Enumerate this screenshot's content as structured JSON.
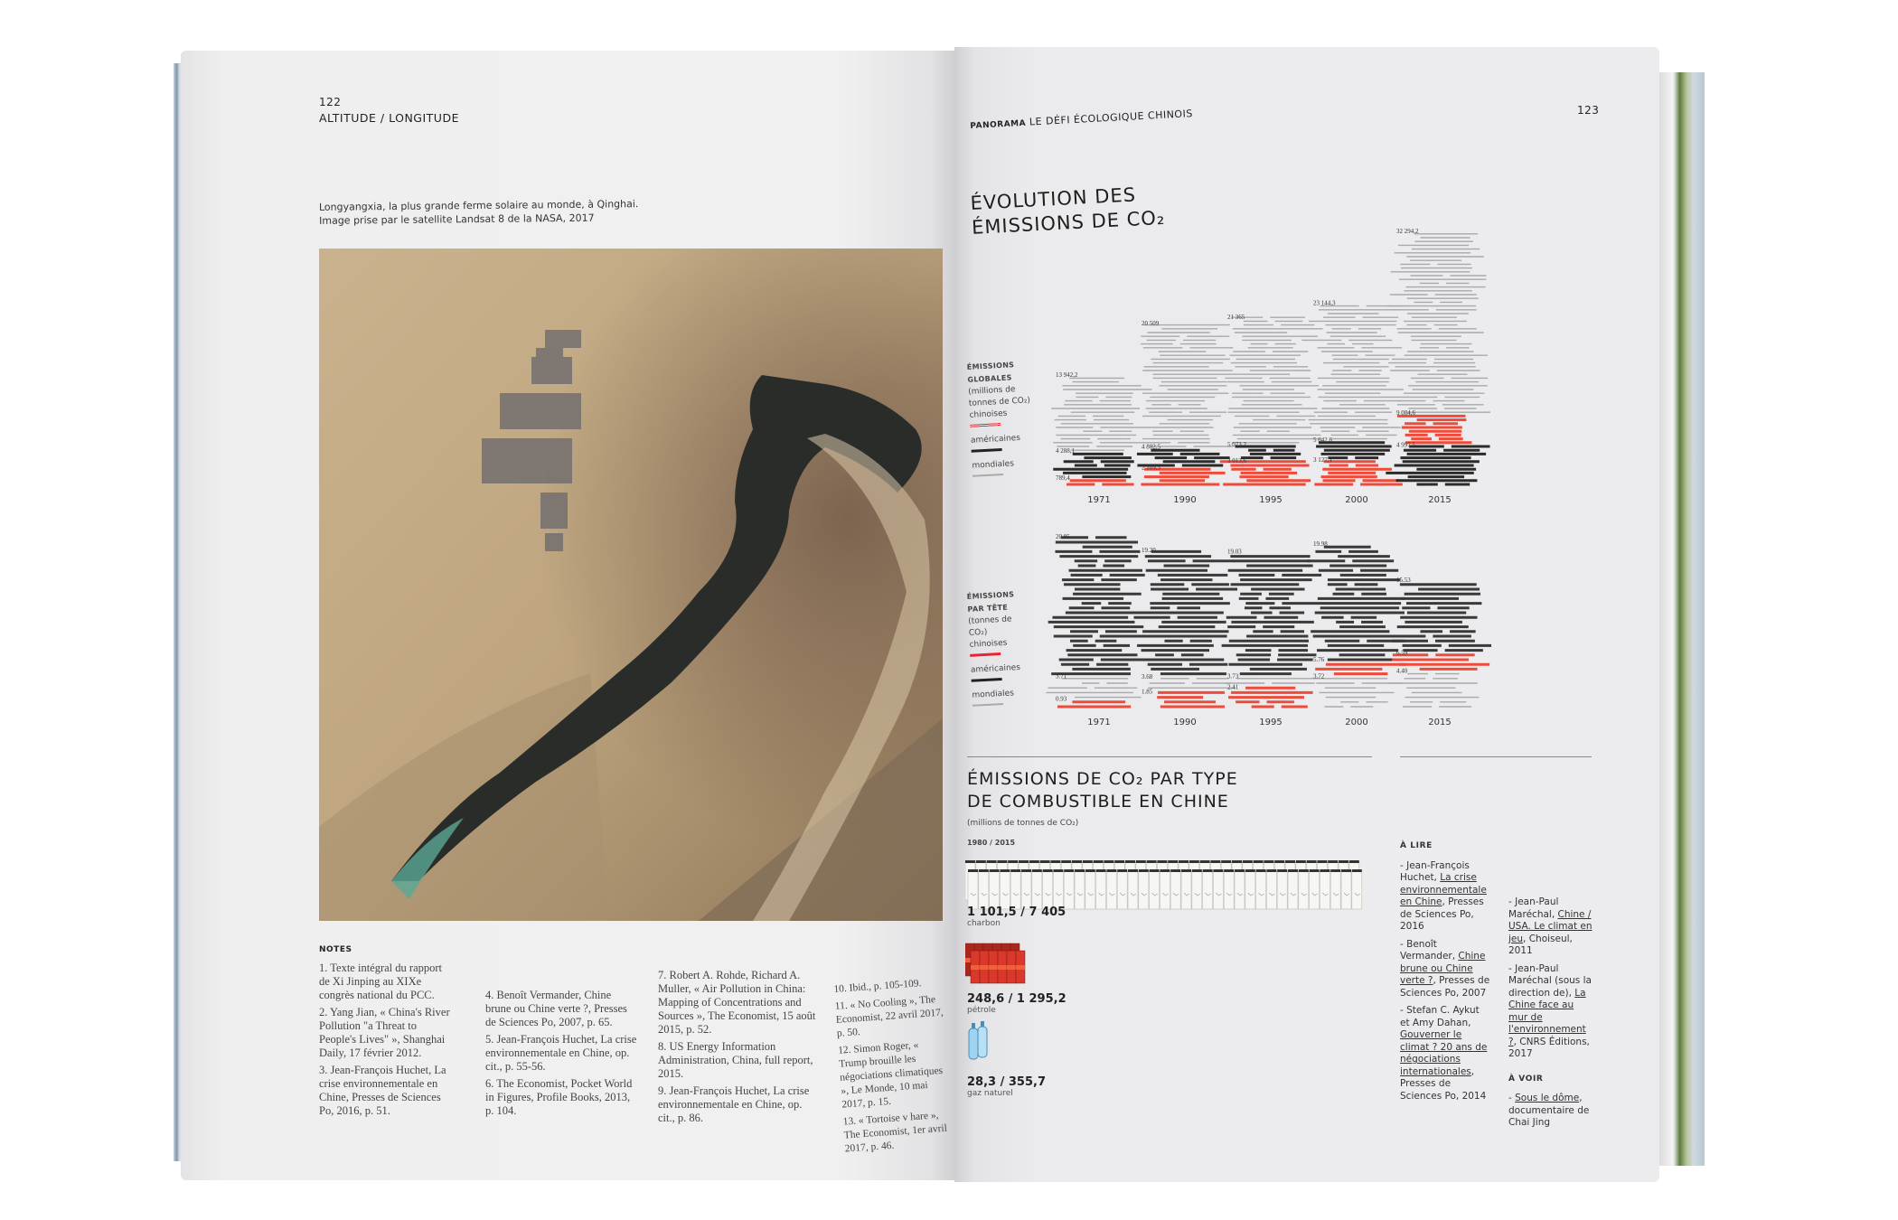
{
  "left_page": {
    "page_number": "122",
    "running_head": "ALTITUDE / LONGITUDE",
    "caption": [
      "Longyangxia, la plus grande ferme solaire au monde, à Qinghai.",
      "Image prise par le satellite Landsat 8 de la NASA, 2017"
    ],
    "notes_heading": "NOTES",
    "notes_columns": [
      [
        "1. Texte intégral du rapport de Xi Jinping au XIXe congrès national du PCC.",
        "2. Yang Jian, « China's River Pollution \"a Threat to People's Lives\" », Shanghai Daily, 17 février 2012.",
        "3. Jean-François Huchet, La crise environnementale en Chine, Presses de Sciences Po, 2016, p. 51."
      ],
      [
        "4. Benoît Vermander, Chine brune ou Chine verte ?, Presses de Sciences Po, 2007, p. 65.",
        "5. Jean-François Huchet, La crise environnementale en Chine, op. cit., p. 55-56.",
        "6. The Economist, Pocket World in Figures, Profile Books, 2013, p. 104."
      ],
      [
        "7. Robert A. Rohde, Richard A. Muller, « Air Pollution in China: Mapping of Concentrations and Sources », The Economist, 15 août 2015, p. 52.",
        "8. US Energy Information Administration, China, full report, 2015.",
        "9. Jean-François Huchet, La crise environnementale en Chine, op. cit., p. 86."
      ],
      [
        "10. Ibid., p. 105-109.",
        "11. « No Cooling », The Economist, 22 avril 2017, p. 50.",
        "12. Simon Roger, « Trump brouille les négociations climatiques », Le Monde, 10 mai 2017, p. 15.",
        "13. « Tortoise v hare », The Economist, 1er avril 2017, p. 46."
      ]
    ]
  },
  "right_page": {
    "running_head_bold": "PANORAMA",
    "running_head": "LE DÉFI ÉCOLOGIQUE CHINOIS",
    "page_number": "123",
    "title_line1": "ÉVOLUTION DES",
    "title_line2": "ÉMISSIONS DE CO₂",
    "legend_global": {
      "heading1": "ÉMISSIONS",
      "heading2": "GLOBALES",
      "unit": "(millions de tonnes de CO₂)",
      "china": "chinoises",
      "us": "américaines",
      "world": "mondiales"
    },
    "legend_per_capita": {
      "heading1": "ÉMISSIONS",
      "heading2": "PAR TÊTE",
      "unit": "(tonnes de CO₂)",
      "china": "chinoises",
      "us": "américaines",
      "world": "mondiales"
    },
    "fuel_title_line1": "ÉMISSIONS DE CO₂ PAR TYPE",
    "fuel_title_line2": "DE COMBUSTIBLE EN CHINE",
    "fuel_unit": "(millions de tonnes de CO₂)",
    "fuel_period": "1980 / 2015",
    "fuels": [
      {
        "value": "1 101,5 / 7 405",
        "name": "charbon",
        "icon": "coal-sack-icon"
      },
      {
        "value": "248,6 / 1 295,2",
        "name": "pétrole",
        "icon": "oil-barrel-icon"
      },
      {
        "value": "28,3 / 355,7",
        "name": "gaz naturel",
        "icon": "gas-bottle-icon"
      }
    ],
    "reading": {
      "heading": "À LIRE",
      "col1": [
        {
          "pre": "- Jean-François Huchet, ",
          "title": "La crise environnementale en Chine",
          "post": ", Presses de Sciences Po, 2016"
        },
        {
          "pre": "- Benoît Vermander, ",
          "title": "Chine brune ou Chine verte ?",
          "post": ", Presses de Sciences Po, 2007"
        },
        {
          "pre": "- Stefan C. Aykut et Amy Dahan, ",
          "title": "Gouverner le climat ? 20 ans de négociations internationales",
          "post": ", Presses de Sciences Po, 2014"
        }
      ],
      "col2": [
        {
          "pre": "- Jean-Paul Maréchal, ",
          "title": "Chine / USA. Le climat en jeu",
          "post": ", Choiseul, 2011"
        },
        {
          "pre": "- Jean-Paul Maréchal (sous la direction de), ",
          "title": "La Chine face au mur de l'environnement ?",
          "post": ", CNRS Éditions, 2017"
        }
      ],
      "watch_heading": "À VOIR",
      "watch": [
        {
          "pre": "- ",
          "title": "Sous le dôme",
          "post": ", documentaire de Chai Jing"
        }
      ]
    }
  },
  "chart_data": [
    {
      "type": "bar",
      "title": "ÉVOLUTION DES ÉMISSIONS DE CO₂",
      "ylabel": "ÉMISSIONS GLOBALES (millions de tonnes de CO₂)",
      "categories": [
        "1971",
        "1990",
        "1995",
        "2000",
        "2015"
      ],
      "series": [
        {
          "name": "mondiales",
          "values": [
            13942.2,
            20509,
            21365,
            23144.3,
            32294.2
          ],
          "labels": [
            "13 942,2",
            "20 509",
            "21 365",
            "23 144,3",
            "32 294,2"
          ],
          "color": "#a9a9ab"
        },
        {
          "name": "américaines",
          "values": [
            4288.1,
            4802.5,
            5073.2,
            5642.6,
            4997.5
          ],
          "labels": [
            "4 288,1",
            "4 802,5",
            "5 073,2",
            "5 642,6",
            "4 997,5"
          ],
          "color": "#2b2b2b"
        },
        {
          "name": "chinoises",
          "values": [
            789.4,
            2109.3,
            3013.6,
            3127.1,
            9084.6
          ],
          "labels": [
            "789,4",
            "2 109,3",
            "3 013,6",
            "3 127,1",
            "9 084,6"
          ],
          "color": "#ee4b3b"
        }
      ]
    },
    {
      "type": "bar",
      "ylabel": "ÉMISSIONS PAR TÊTE (tonnes de CO₂)",
      "categories": [
        "1971",
        "1990",
        "1995",
        "2000",
        "2015"
      ],
      "series": [
        {
          "name": "américaines",
          "values": [
            20.85,
            19.2,
            19.03,
            19.98,
            15.53
          ],
          "labels": [
            "20.85",
            "19.20",
            "19.03",
            "19.98",
            "15.53"
          ],
          "color": "#3a3a3a"
        },
        {
          "name": "mondiales",
          "values": [
            3.71,
            3.68,
            3.73,
            3.72,
            4.4
          ],
          "labels": [
            "3.71",
            "3.68",
            "3.73",
            "3.72",
            "4.40"
          ],
          "color": "#a9a9ab"
        },
        {
          "name": "chinoises",
          "values": [
            0.93,
            1.85,
            2.41,
            5.76,
            6.59
          ],
          "labels": [
            "0.93",
            "1.85",
            "2.41",
            "5.76",
            "6.59"
          ],
          "color": "#ee4b3b"
        }
      ]
    }
  ]
}
